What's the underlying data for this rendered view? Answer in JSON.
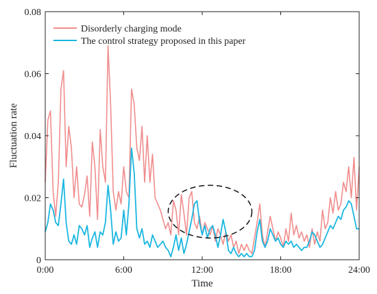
{
  "chart_data": {
    "type": "line",
    "xlabel": "Time",
    "ylabel": "Fluctuation rate",
    "xlim": [
      0,
      24
    ],
    "ylim": [
      0,
      0.08
    ],
    "x_ticks": [
      {
        "value": 0,
        "label": "0:00"
      },
      {
        "value": 6,
        "label": "6:00"
      },
      {
        "value": 12,
        "label": "12:00"
      },
      {
        "value": 18,
        "label": "18:00"
      },
      {
        "value": 24,
        "label": "24:00"
      }
    ],
    "y_ticks": [
      {
        "value": 0,
        "label": "0"
      },
      {
        "value": 0.02,
        "label": "0.02"
      },
      {
        "value": 0.04,
        "label": "0.04"
      },
      {
        "value": 0.06,
        "label": "0.06"
      },
      {
        "value": 0.08,
        "label": "0.08"
      }
    ],
    "grid": false,
    "legend_position": "top-left",
    "series": [
      {
        "name": "Disorderly charging mode",
        "color": "#f08c8c",
        "points": [
          [
            0,
            0.025
          ],
          [
            0.2,
            0.045
          ],
          [
            0.4,
            0.048
          ],
          [
            0.6,
            0.022
          ],
          [
            0.8,
            0.014
          ],
          [
            1.0,
            0.025
          ],
          [
            1.2,
            0.055
          ],
          [
            1.4,
            0.061
          ],
          [
            1.6,
            0.03
          ],
          [
            1.8,
            0.043
          ],
          [
            2.0,
            0.036
          ],
          [
            2.2,
            0.02
          ],
          [
            2.4,
            0.03
          ],
          [
            2.6,
            0.018
          ],
          [
            2.8,
            0.017
          ],
          [
            3.0,
            0.021
          ],
          [
            3.2,
            0.027
          ],
          [
            3.4,
            0.014
          ],
          [
            3.6,
            0.038
          ],
          [
            3.8,
            0.03
          ],
          [
            4.0,
            0.013
          ],
          [
            4.2,
            0.042
          ],
          [
            4.4,
            0.03
          ],
          [
            4.6,
            0.025
          ],
          [
            4.8,
            0.069
          ],
          [
            5.0,
            0.05
          ],
          [
            5.2,
            0.022
          ],
          [
            5.4,
            0.016
          ],
          [
            5.6,
            0.022
          ],
          [
            5.8,
            0.018
          ],
          [
            6.0,
            0.03
          ],
          [
            6.2,
            0.022
          ],
          [
            6.4,
            0.02
          ],
          [
            6.6,
            0.055
          ],
          [
            6.8,
            0.05
          ],
          [
            7.0,
            0.036
          ],
          [
            7.2,
            0.032
          ],
          [
            7.4,
            0.043
          ],
          [
            7.6,
            0.025
          ],
          [
            7.8,
            0.04
          ],
          [
            8.0,
            0.025
          ],
          [
            8.2,
            0.034
          ],
          [
            8.4,
            0.02
          ],
          [
            8.6,
            0.018
          ],
          [
            8.8,
            0.016
          ],
          [
            9.0,
            0.013
          ],
          [
            9.2,
            0.01
          ],
          [
            9.4,
            0.012
          ],
          [
            9.6,
            0.008
          ],
          [
            9.8,
            0.019
          ],
          [
            10.0,
            0.016
          ],
          [
            10.2,
            0.008
          ],
          [
            10.4,
            0.021
          ],
          [
            10.6,
            0.015
          ],
          [
            10.8,
            0.008
          ],
          [
            11.0,
            0.02
          ],
          [
            11.2,
            0.022
          ],
          [
            11.4,
            0.012
          ],
          [
            11.6,
            0.01
          ],
          [
            11.8,
            0.014
          ],
          [
            12.0,
            0.008
          ],
          [
            12.2,
            0.012
          ],
          [
            12.4,
            0.01
          ],
          [
            12.6,
            0.008
          ],
          [
            12.8,
            0.011
          ],
          [
            13.0,
            0.006
          ],
          [
            13.2,
            0.01
          ],
          [
            13.4,
            0.008
          ],
          [
            13.6,
            0.005
          ],
          [
            13.8,
            0.009
          ],
          [
            14.0,
            0.006
          ],
          [
            14.2,
            0.008
          ],
          [
            14.4,
            0.004
          ],
          [
            14.6,
            0.006
          ],
          [
            14.8,
            0.002
          ],
          [
            15.0,
            0.005
          ],
          [
            15.2,
            0.003
          ],
          [
            15.4,
            0.005
          ],
          [
            15.6,
            0.003
          ],
          [
            15.8,
            0.002
          ],
          [
            16.0,
            0.007
          ],
          [
            16.2,
            0.012
          ],
          [
            16.4,
            0.018
          ],
          [
            16.6,
            0.008
          ],
          [
            16.8,
            0.004
          ],
          [
            17.0,
            0.009
          ],
          [
            17.2,
            0.014
          ],
          [
            17.4,
            0.01
          ],
          [
            17.6,
            0.006
          ],
          [
            17.8,
            0.009
          ],
          [
            18.0,
            0.007
          ],
          [
            18.2,
            0.004
          ],
          [
            18.4,
            0.01
          ],
          [
            18.6,
            0.006
          ],
          [
            18.8,
            0.015
          ],
          [
            19.0,
            0.008
          ],
          [
            19.2,
            0.011
          ],
          [
            19.4,
            0.007
          ],
          [
            19.6,
            0.009
          ],
          [
            19.8,
            0.006
          ],
          [
            20.0,
            0.008
          ],
          [
            20.2,
            0.004
          ],
          [
            20.4,
            0.01
          ],
          [
            20.6,
            0.005
          ],
          [
            20.8,
            0.009
          ],
          [
            21.0,
            0.006
          ],
          [
            21.2,
            0.016
          ],
          [
            21.4,
            0.01
          ],
          [
            21.6,
            0.012
          ],
          [
            21.8,
            0.02
          ],
          [
            22.0,
            0.015
          ],
          [
            22.2,
            0.022
          ],
          [
            22.4,
            0.016
          ],
          [
            22.6,
            0.018
          ],
          [
            22.8,
            0.025
          ],
          [
            23.0,
            0.022
          ],
          [
            23.2,
            0.03
          ],
          [
            23.4,
            0.02
          ],
          [
            23.6,
            0.033
          ],
          [
            23.8,
            0.016
          ],
          [
            24.0,
            0.03
          ]
        ]
      },
      {
        "name": "The control strategy proposed in this paper",
        "color": "#1ab6e0",
        "points": [
          [
            0,
            0.009
          ],
          [
            0.2,
            0.012
          ],
          [
            0.4,
            0.018
          ],
          [
            0.6,
            0.016
          ],
          [
            0.8,
            0.012
          ],
          [
            1.0,
            0.011
          ],
          [
            1.2,
            0.018
          ],
          [
            1.4,
            0.026
          ],
          [
            1.6,
            0.012
          ],
          [
            1.8,
            0.006
          ],
          [
            2.0,
            0.005
          ],
          [
            2.2,
            0.008
          ],
          [
            2.4,
            0.005
          ],
          [
            2.6,
            0.011
          ],
          [
            2.8,
            0.01
          ],
          [
            3.0,
            0.008
          ],
          [
            3.2,
            0.011
          ],
          [
            3.4,
            0.004
          ],
          [
            3.6,
            0.007
          ],
          [
            3.8,
            0.009
          ],
          [
            4.0,
            0.004
          ],
          [
            4.2,
            0.009
          ],
          [
            4.4,
            0.008
          ],
          [
            4.6,
            0.012
          ],
          [
            4.8,
            0.024
          ],
          [
            5.0,
            0.016
          ],
          [
            5.2,
            0.005
          ],
          [
            5.4,
            0.009
          ],
          [
            5.6,
            0.006
          ],
          [
            5.8,
            0.007
          ],
          [
            6.0,
            0.016
          ],
          [
            6.2,
            0.008
          ],
          [
            6.4,
            0.018
          ],
          [
            6.6,
            0.036
          ],
          [
            6.8,
            0.028
          ],
          [
            7.0,
            0.01
          ],
          [
            7.2,
            0.007
          ],
          [
            7.4,
            0.01
          ],
          [
            7.6,
            0.005
          ],
          [
            7.8,
            0.006
          ],
          [
            8.0,
            0.004
          ],
          [
            8.2,
            0.008
          ],
          [
            8.4,
            0.006
          ],
          [
            8.6,
            0.004
          ],
          [
            8.8,
            0.005
          ],
          [
            9.0,
            0.006
          ],
          [
            9.2,
            0.004
          ],
          [
            9.4,
            0.003
          ],
          [
            9.6,
            0.001
          ],
          [
            9.8,
            0.004
          ],
          [
            10.0,
            0.008
          ],
          [
            10.2,
            0.003
          ],
          [
            10.4,
            0.007
          ],
          [
            10.6,
            0.002
          ],
          [
            10.8,
            0.005
          ],
          [
            11.0,
            0.009
          ],
          [
            11.2,
            0.013
          ],
          [
            11.4,
            0.018
          ],
          [
            11.6,
            0.019
          ],
          [
            11.8,
            0.012
          ],
          [
            12.0,
            0.008
          ],
          [
            12.2,
            0.011
          ],
          [
            12.4,
            0.007
          ],
          [
            12.6,
            0.01
          ],
          [
            12.8,
            0.011
          ],
          [
            13.0,
            0.008
          ],
          [
            13.2,
            0.004
          ],
          [
            13.4,
            0.008
          ],
          [
            13.6,
            0.013
          ],
          [
            13.8,
            0.009
          ],
          [
            14.0,
            0.003
          ],
          [
            14.2,
            0.002
          ],
          [
            14.4,
            0.004
          ],
          [
            14.6,
            0.002
          ],
          [
            14.8,
            0.001
          ],
          [
            15.0,
            0.002
          ],
          [
            15.2,
            0.001
          ],
          [
            15.4,
            0.002
          ],
          [
            15.6,
            0.001
          ],
          [
            15.8,
            0.001
          ],
          [
            16.0,
            0.003
          ],
          [
            16.2,
            0.009
          ],
          [
            16.4,
            0.013
          ],
          [
            16.6,
            0.006
          ],
          [
            16.8,
            0.004
          ],
          [
            17.0,
            0.006
          ],
          [
            17.2,
            0.01
          ],
          [
            17.4,
            0.008
          ],
          [
            17.6,
            0.006
          ],
          [
            17.8,
            0.007
          ],
          [
            18.0,
            0.005
          ],
          [
            18.2,
            0.004
          ],
          [
            18.4,
            0.006
          ],
          [
            18.6,
            0.005
          ],
          [
            18.8,
            0.006
          ],
          [
            19.0,
            0.004
          ],
          [
            19.2,
            0.005
          ],
          [
            19.4,
            0.004
          ],
          [
            19.6,
            0.003
          ],
          [
            19.8,
            0.004
          ],
          [
            20.0,
            0.004
          ],
          [
            20.2,
            0.006
          ],
          [
            20.4,
            0.009
          ],
          [
            20.6,
            0.008
          ],
          [
            20.8,
            0.006
          ],
          [
            21.0,
            0.004
          ],
          [
            21.2,
            0.005
          ],
          [
            21.4,
            0.007
          ],
          [
            21.6,
            0.009
          ],
          [
            21.8,
            0.011
          ],
          [
            22.0,
            0.01
          ],
          [
            22.2,
            0.012
          ],
          [
            22.4,
            0.014
          ],
          [
            22.6,
            0.013
          ],
          [
            22.8,
            0.016
          ],
          [
            23.0,
            0.017
          ],
          [
            23.2,
            0.019
          ],
          [
            23.4,
            0.018
          ],
          [
            23.6,
            0.014
          ],
          [
            23.8,
            0.01
          ],
          [
            24.0,
            0.01
          ]
        ]
      }
    ],
    "annotation": {
      "shape": "dashed-ellipse",
      "x_range": [
        9.4,
        15.8
      ],
      "y_range": [
        0.007,
        0.024
      ]
    }
  }
}
